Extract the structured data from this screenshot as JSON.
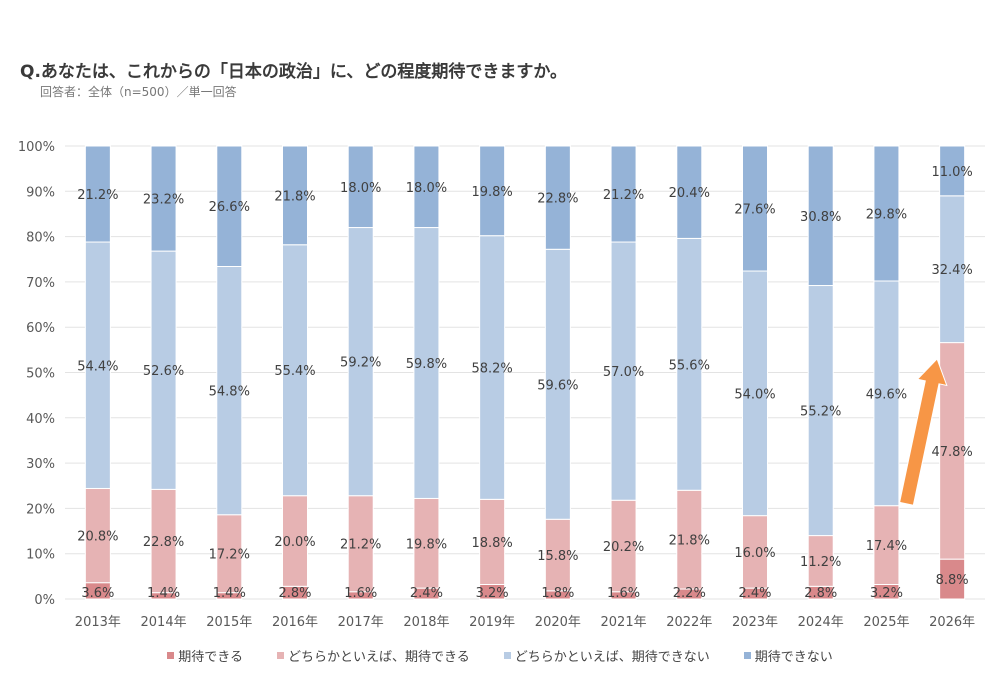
{
  "header": {
    "title": "Q.あなたは、これからの「日本の政治」に、どの程度期待できますか。",
    "subtitle": "回答者：全体（n=500）／単一回答"
  },
  "chart_data": {
    "type": "bar",
    "stacked": true,
    "title": "Q.あなたは、これからの「日本の政治」に、どの程度期待できますか。",
    "subtitle": "回答者：全体（n=500）／単一回答",
    "xlabel": "",
    "ylabel": "",
    "ylim": [
      0,
      100
    ],
    "yticks": [
      "0%",
      "10%",
      "20%",
      "30%",
      "40%",
      "50%",
      "60%",
      "70%",
      "80%",
      "90%",
      "100%"
    ],
    "grid": true,
    "legend_position": "bottom",
    "categories": [
      "2013年",
      "2014年",
      "2015年",
      "2016年",
      "2017年",
      "2018年",
      "2019年",
      "2020年",
      "2021年",
      "2022年",
      "2023年",
      "2024年",
      "2025年",
      "2026年"
    ],
    "series": [
      {
        "name": "期待できる",
        "color": "#d9898b",
        "values": [
          3.6,
          1.4,
          1.4,
          2.8,
          1.6,
          2.4,
          3.2,
          1.8,
          1.6,
          2.2,
          2.4,
          2.8,
          3.2,
          8.8
        ],
        "labels": [
          "3.6%",
          "1.4%",
          "1.4%",
          "2.8%",
          "1.6%",
          "2.4%",
          "3.2%",
          "1.8%",
          "1.6%",
          "2.2%",
          "2.4%",
          "2.8%",
          "3.2%",
          "8.8%"
        ]
      },
      {
        "name": "どちらかといえば、期待できる",
        "color": "#e6b3b4",
        "values": [
          20.8,
          22.8,
          17.2,
          20.0,
          21.2,
          19.8,
          18.8,
          15.8,
          20.2,
          21.8,
          16.0,
          11.2,
          17.4,
          47.8
        ],
        "labels": [
          "20.8%",
          "22.8%",
          "17.2%",
          "20.0%",
          "21.2%",
          "19.8%",
          "18.8%",
          "15.8%",
          "20.2%",
          "21.8%",
          "16.0%",
          "11.2%",
          "17.4%",
          "47.8%"
        ]
      },
      {
        "name": "どちらかといえば、期待できない",
        "color": "#b8cce4",
        "values": [
          54.4,
          52.6,
          54.8,
          55.4,
          59.2,
          59.8,
          58.2,
          59.6,
          57.0,
          55.6,
          54.0,
          55.2,
          49.6,
          32.4
        ],
        "labels": [
          "54.4%",
          "52.6%",
          "54.8%",
          "55.4%",
          "59.2%",
          "59.8%",
          "58.2%",
          "59.6%",
          "57.0%",
          "55.6%",
          "54.0%",
          "55.2%",
          "49.6%",
          "32.4%"
        ]
      },
      {
        "name": "期待できない",
        "color": "#95b3d7",
        "values": [
          21.2,
          23.2,
          26.6,
          21.8,
          18.0,
          18.0,
          19.8,
          22.8,
          21.2,
          20.4,
          27.6,
          30.8,
          29.8,
          11.0
        ],
        "labels": [
          "21.2%",
          "23.2%",
          "26.6%",
          "21.8%",
          "18.0%",
          "18.0%",
          "19.8%",
          "22.8%",
          "21.2%",
          "20.4%",
          "27.6%",
          "30.8%",
          "29.8%",
          "11.0%"
        ]
      }
    ],
    "annotations": [
      {
        "type": "arrow",
        "color": "#f79646",
        "from_category": "2025年",
        "to_category": "2026年",
        "meaning": "increase in expectation"
      }
    ]
  }
}
